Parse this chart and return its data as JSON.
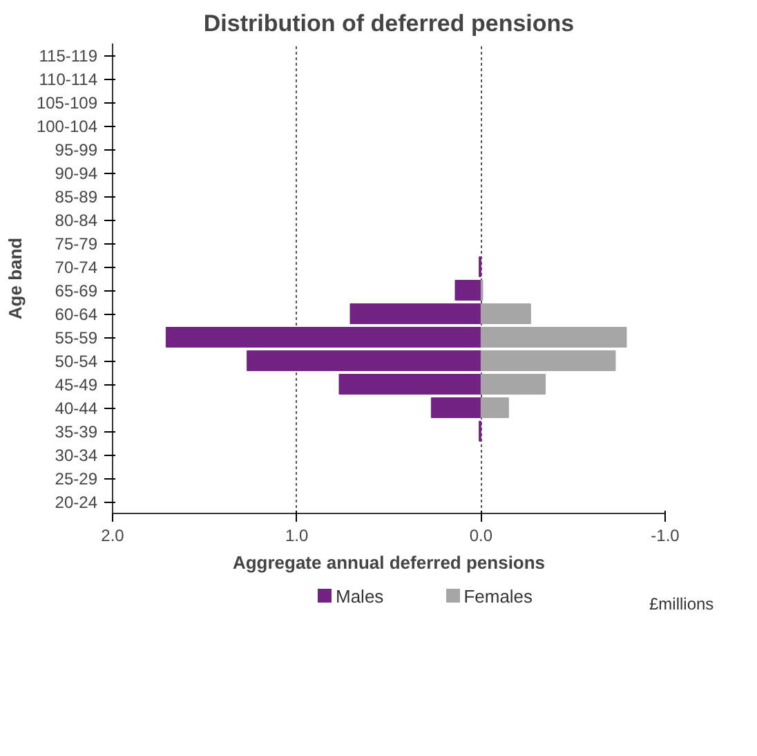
{
  "chart_data": {
    "type": "bar",
    "orientation": "horizontal",
    "title": "Distribution of deferred pensions",
    "xlabel": "Aggregate annual deferred pensions",
    "ylabel": "Age band",
    "categories": [
      "115-119",
      "110-114",
      "105-109",
      "100-104",
      "95-99",
      "90-94",
      "85-89",
      "80-84",
      "75-79",
      "70-74",
      "65-69",
      "60-64",
      "55-59",
      "50-54",
      "45-49",
      "40-44",
      "35-39",
      "30-34",
      "25-29",
      "20-24"
    ],
    "series": [
      {
        "name": "Males",
        "color": "#712282",
        "values": [
          null,
          null,
          null,
          null,
          null,
          null,
          null,
          null,
          null,
          0.01,
          0.14,
          0.71,
          1.71,
          1.27,
          0.77,
          0.27,
          0.01,
          null,
          null,
          null
        ]
      },
      {
        "name": "Females",
        "color": "#a6a6a6",
        "values": [
          null,
          null,
          null,
          null,
          null,
          null,
          null,
          null,
          null,
          null,
          -0.01,
          -0.27,
          -0.79,
          -0.73,
          -0.35,
          -0.15,
          null,
          null,
          null,
          null
        ]
      }
    ],
    "xlim": [
      2.0,
      -1.0
    ],
    "xticks": [
      {
        "value": 2.0,
        "label": "2.0"
      },
      {
        "value": 1.0,
        "label": "1.0"
      },
      {
        "value": 0.0,
        "label": "0.0"
      },
      {
        "value": -1.0,
        "label": "-1.0"
      }
    ],
    "grid": "x",
    "legend": "bottom",
    "annotations": [
      "£millions"
    ]
  }
}
